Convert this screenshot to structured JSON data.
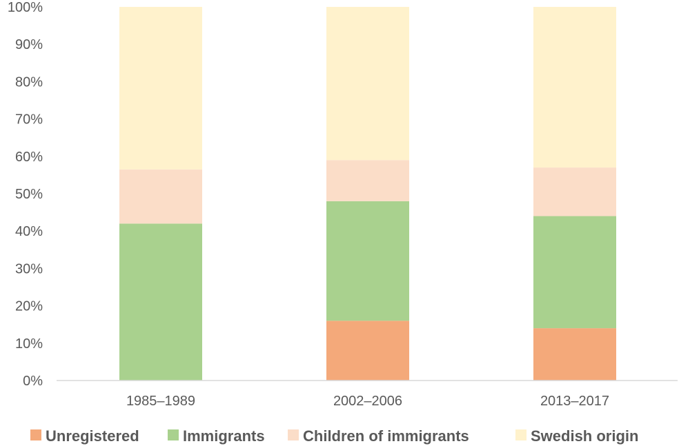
{
  "chart_data": {
    "type": "bar",
    "stacked": true,
    "categories": [
      "1985–1989",
      "2002–2006",
      "2013–2017"
    ],
    "series": [
      {
        "name": "Unregistered",
        "values": [
          0,
          16,
          14
        ],
        "color": "#F4A97A"
      },
      {
        "name": "Immigrants",
        "values": [
          42,
          32,
          30
        ],
        "color": "#A9D18E"
      },
      {
        "name": "Children of immigrants",
        "values": [
          14.5,
          11,
          13
        ],
        "color": "#FBDDC8"
      },
      {
        "name": "Swedish origin",
        "values": [
          43.5,
          41,
          43
        ],
        "color": "#FFF2CC"
      }
    ],
    "y_ticks": [
      "0%",
      "10%",
      "20%",
      "30%",
      "40%",
      "50%",
      "60%",
      "70%",
      "80%",
      "90%",
      "100%"
    ],
    "ylim": [
      0,
      100
    ],
    "y_unit": "%",
    "grid": false,
    "legend_position": "bottom",
    "title": "",
    "xlabel": "",
    "ylabel": ""
  }
}
